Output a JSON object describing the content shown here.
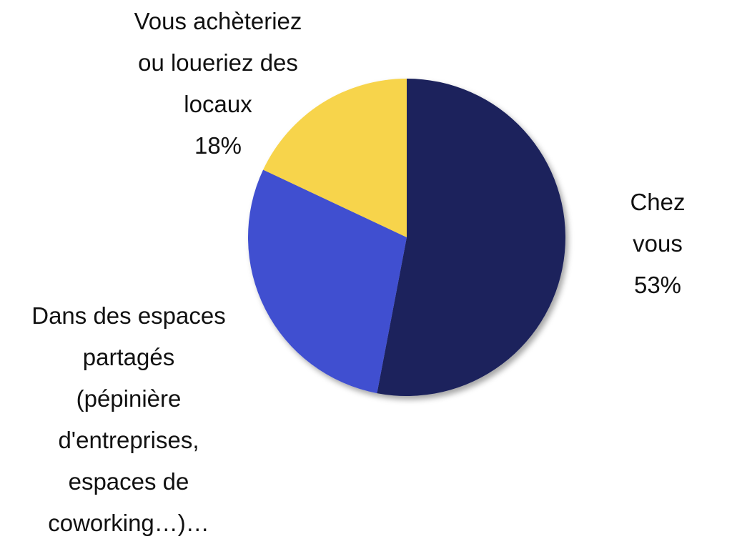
{
  "chart_data": {
    "type": "pie",
    "categories": [
      "Chez vous",
      "Dans des espaces\npartagés\n(pépinière\nd'entreprises,\nespaces de\ncoworking…)…",
      "Vous achèteriez\nou loueriez des\nlocaux"
    ],
    "values": [
      53,
      29,
      18
    ],
    "value_labels": [
      "53%",
      null,
      "18%"
    ],
    "colors": [
      "#1a205c",
      "#3f4fd0",
      "#f7d44c"
    ]
  }
}
